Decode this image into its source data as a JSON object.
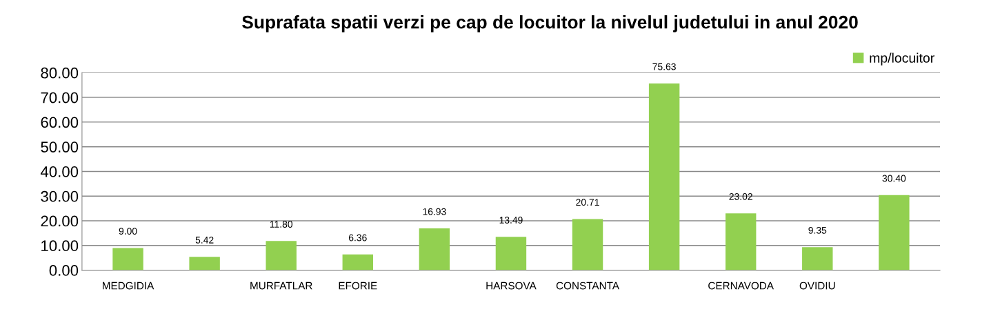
{
  "chart_data": {
    "type": "bar",
    "title": "Suprafata spatii verzi pe cap de locuitor la nivelul judetului in anul 2020",
    "categories": [
      "MEDGIDIA",
      null,
      "MURFATLAR",
      "EFORIE",
      null,
      "HARSOVA",
      "CONSTANTA",
      null,
      "CERNAVODA",
      "OVIDIU",
      null
    ],
    "series": [
      {
        "name": "mp/locuitor",
        "color": "#92d050",
        "values": [
          9.0,
          5.42,
          11.8,
          6.36,
          16.93,
          13.49,
          20.71,
          75.63,
          23.02,
          9.35,
          30.4
        ],
        "value_labels": [
          "9.00",
          "5.42",
          "11.80",
          "6.36",
          "16.93",
          "13.49",
          "20.71",
          "75.63",
          "23.02",
          "9.35",
          "30.40"
        ]
      }
    ],
    "ylim": [
      0,
      80
    ],
    "yticks": [
      {
        "value": 0,
        "label": "0.00"
      },
      {
        "value": 10,
        "label": "10.00"
      },
      {
        "value": 20,
        "label": "20.00"
      },
      {
        "value": 30,
        "label": "30.00"
      },
      {
        "value": 40,
        "label": "40.00"
      },
      {
        "value": 50,
        "label": "50.00"
      },
      {
        "value": 60,
        "label": "60.00"
      },
      {
        "value": 70,
        "label": "70.00"
      },
      {
        "value": 80,
        "label": "80.00"
      }
    ],
    "grid": "y",
    "legend": "top right"
  }
}
